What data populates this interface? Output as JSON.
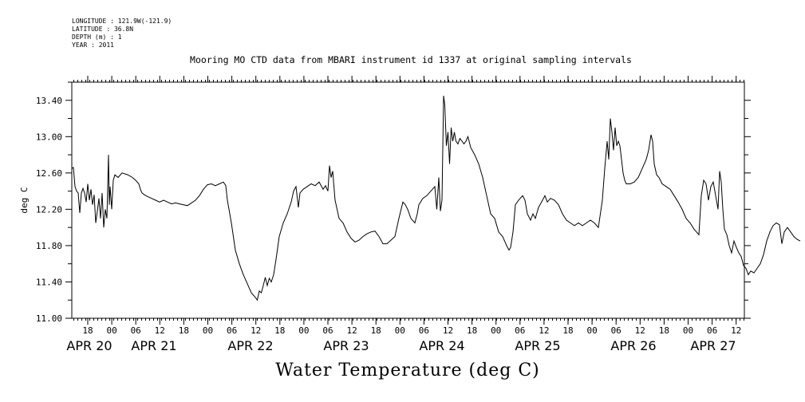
{
  "meta": {
    "longitude": "LONGITUDE : 121.9W(-121.9)",
    "latitude": "LATITUDE : 36.8N",
    "depth": "DEPTH (m) : 1",
    "year": "YEAR : 2011"
  },
  "chart_data": {
    "type": "line",
    "title": "Mooring MO CTD data from MBARI instrument id 1337 at original sampling intervals",
    "xlabel": "Water Temperature (deg C)",
    "ylabel": "deg C",
    "ylim": [
      11.0,
      13.6
    ],
    "xlim_hours": [
      0,
      174
    ],
    "y_ticks": [
      "11.00",
      "11.40",
      "11.80",
      "12.20",
      "12.60",
      "13.00",
      "13.40"
    ],
    "x_hour_ticks": [
      "18",
      "00",
      "06",
      "12",
      "18",
      "00",
      "06",
      "12",
      "18",
      "00",
      "06",
      "12",
      "18",
      "00",
      "06",
      "12",
      "18",
      "00",
      "06",
      "12",
      "18",
      "00",
      "06",
      "12",
      "18",
      "00",
      "06",
      "12",
      "18",
      "00",
      "06",
      "12",
      "18",
      "00",
      "06",
      "12",
      "18",
      "00",
      "06",
      "12"
    ],
    "date_labels": [
      "APR 20",
      "APR 21",
      "APR 22",
      "APR 23",
      "APR 24",
      "APR 25",
      "APR 26",
      "APR 27"
    ],
    "grid": false,
    "series": [
      {
        "values": [
          [
            0.0,
            12.65
          ],
          [
            0.4,
            12.66
          ],
          [
            0.8,
            12.45
          ],
          [
            1.2,
            12.4
          ],
          [
            1.6,
            12.38
          ],
          [
            2.0,
            12.16
          ],
          [
            2.4,
            12.38
          ],
          [
            2.8,
            12.43
          ],
          [
            3.2,
            12.38
          ],
          [
            3.6,
            12.28
          ],
          [
            4.0,
            12.48
          ],
          [
            4.4,
            12.3
          ],
          [
            4.8,
            12.42
          ],
          [
            5.2,
            12.25
          ],
          [
            5.6,
            12.36
          ],
          [
            6.0,
            12.05
          ],
          [
            6.4,
            12.18
          ],
          [
            6.8,
            12.32
          ],
          [
            7.2,
            12.1
          ],
          [
            7.6,
            12.38
          ],
          [
            8.0,
            12.0
          ],
          [
            8.4,
            12.2
          ],
          [
            8.8,
            12.1
          ],
          [
            9.2,
            12.8
          ],
          [
            9.4,
            12.25
          ],
          [
            9.6,
            12.45
          ],
          [
            10.0,
            12.2
          ],
          [
            10.4,
            12.52
          ],
          [
            10.8,
            12.58
          ],
          [
            11.6,
            12.55
          ],
          [
            12.6,
            12.6
          ],
          [
            14.0,
            12.58
          ],
          [
            15.2,
            12.55
          ],
          [
            16.0,
            12.52
          ],
          [
            16.8,
            12.48
          ],
          [
            17.2,
            12.42
          ],
          [
            17.6,
            12.38
          ],
          [
            18.2,
            12.36
          ],
          [
            19.0,
            12.34
          ],
          [
            20.0,
            12.32
          ],
          [
            21.0,
            12.3
          ],
          [
            22.0,
            12.28
          ],
          [
            23.0,
            12.3
          ],
          [
            24.0,
            12.28
          ],
          [
            25.0,
            12.26
          ],
          [
            26.0,
            12.27
          ],
          [
            27.0,
            12.26
          ],
          [
            28.0,
            12.25
          ],
          [
            29.0,
            12.24
          ],
          [
            30.0,
            12.27
          ],
          [
            31.0,
            12.3
          ],
          [
            32.0,
            12.35
          ],
          [
            33.0,
            12.42
          ],
          [
            34.0,
            12.47
          ],
          [
            35.0,
            12.48
          ],
          [
            36.0,
            12.46
          ],
          [
            37.0,
            12.48
          ],
          [
            38.0,
            12.5
          ],
          [
            38.6,
            12.46
          ],
          [
            39.0,
            12.3
          ],
          [
            40.0,
            12.05
          ],
          [
            41.0,
            11.75
          ],
          [
            42.0,
            11.6
          ],
          [
            43.0,
            11.48
          ],
          [
            44.0,
            11.38
          ],
          [
            45.0,
            11.28
          ],
          [
            46.0,
            11.23
          ],
          [
            46.5,
            11.2
          ],
          [
            47.0,
            11.3
          ],
          [
            47.5,
            11.28
          ],
          [
            48.0,
            11.36
          ],
          [
            48.5,
            11.45
          ],
          [
            49.0,
            11.36
          ],
          [
            49.5,
            11.44
          ],
          [
            50.0,
            11.4
          ],
          [
            50.6,
            11.48
          ],
          [
            51.2,
            11.65
          ],
          [
            52.0,
            11.9
          ],
          [
            53.0,
            12.05
          ],
          [
            54.0,
            12.15
          ],
          [
            55.0,
            12.28
          ],
          [
            55.6,
            12.4
          ],
          [
            56.2,
            12.45
          ],
          [
            56.8,
            12.22
          ],
          [
            57.2,
            12.38
          ],
          [
            58.0,
            12.42
          ],
          [
            59.0,
            12.45
          ],
          [
            60.0,
            12.48
          ],
          [
            61.0,
            12.46
          ],
          [
            62.0,
            12.5
          ],
          [
            63.0,
            12.42
          ],
          [
            63.6,
            12.46
          ],
          [
            64.2,
            12.4
          ],
          [
            64.6,
            12.68
          ],
          [
            65.0,
            12.55
          ],
          [
            65.4,
            12.62
          ],
          [
            66.0,
            12.3
          ],
          [
            67.0,
            12.1
          ],
          [
            68.0,
            12.05
          ],
          [
            69.0,
            11.95
          ],
          [
            70.0,
            11.88
          ],
          [
            71.0,
            11.84
          ],
          [
            72.0,
            11.86
          ],
          [
            73.0,
            11.9
          ],
          [
            74.0,
            11.93
          ],
          [
            75.0,
            11.95
          ],
          [
            76.0,
            11.96
          ],
          [
            77.0,
            11.9
          ],
          [
            78.0,
            11.82
          ],
          [
            79.0,
            11.82
          ],
          [
            80.0,
            11.86
          ],
          [
            81.0,
            11.9
          ],
          [
            82.0,
            12.1
          ],
          [
            83.0,
            12.28
          ],
          [
            83.6,
            12.25
          ],
          [
            84.2,
            12.2
          ],
          [
            85.0,
            12.1
          ],
          [
            86.0,
            12.05
          ],
          [
            86.6,
            12.15
          ],
          [
            87.0,
            12.25
          ],
          [
            88.0,
            12.32
          ],
          [
            89.0,
            12.35
          ],
          [
            90.0,
            12.4
          ],
          [
            91.0,
            12.45
          ],
          [
            91.5,
            12.2
          ],
          [
            92.0,
            12.55
          ],
          [
            92.4,
            12.18
          ],
          [
            92.8,
            12.3
          ],
          [
            93.2,
            13.45
          ],
          [
            93.5,
            13.35
          ],
          [
            93.9,
            12.9
          ],
          [
            94.3,
            13.05
          ],
          [
            94.7,
            12.7
          ],
          [
            95.1,
            13.1
          ],
          [
            95.5,
            12.95
          ],
          [
            95.9,
            13.05
          ],
          [
            96.3,
            12.95
          ],
          [
            96.8,
            12.92
          ],
          [
            97.3,
            12.98
          ],
          [
            97.8,
            12.95
          ],
          [
            98.3,
            12.92
          ],
          [
            98.8,
            12.95
          ],
          [
            99.3,
            13.0
          ],
          [
            100.0,
            12.88
          ],
          [
            101.0,
            12.8
          ],
          [
            102.0,
            12.7
          ],
          [
            103.0,
            12.55
          ],
          [
            104.0,
            12.35
          ],
          [
            105.0,
            12.15
          ],
          [
            106.0,
            12.1
          ],
          [
            107.0,
            11.95
          ],
          [
            108.0,
            11.9
          ],
          [
            109.0,
            11.8
          ],
          [
            109.6,
            11.75
          ],
          [
            110.0,
            11.78
          ],
          [
            110.6,
            11.95
          ],
          [
            111.2,
            12.25
          ],
          [
            112.0,
            12.3
          ],
          [
            113.0,
            12.35
          ],
          [
            113.6,
            12.3
          ],
          [
            114.2,
            12.15
          ],
          [
            115.0,
            12.08
          ],
          [
            115.6,
            12.15
          ],
          [
            116.2,
            12.1
          ],
          [
            117.0,
            12.22
          ],
          [
            118.0,
            12.3
          ],
          [
            118.6,
            12.35
          ],
          [
            119.2,
            12.28
          ],
          [
            120.0,
            12.32
          ],
          [
            121.0,
            12.3
          ],
          [
            122.0,
            12.25
          ],
          [
            123.0,
            12.15
          ],
          [
            124.0,
            12.08
          ],
          [
            125.0,
            12.05
          ],
          [
            126.0,
            12.02
          ],
          [
            127.0,
            12.05
          ],
          [
            128.0,
            12.02
          ],
          [
            129.0,
            12.05
          ],
          [
            130.0,
            12.08
          ],
          [
            131.0,
            12.05
          ],
          [
            132.0,
            12.0
          ],
          [
            133.0,
            12.3
          ],
          [
            133.6,
            12.65
          ],
          [
            134.2,
            12.95
          ],
          [
            134.6,
            12.75
          ],
          [
            135.0,
            13.2
          ],
          [
            135.4,
            13.05
          ],
          [
            135.8,
            12.85
          ],
          [
            136.2,
            13.1
          ],
          [
            136.6,
            12.9
          ],
          [
            137.0,
            12.95
          ],
          [
            137.4,
            12.9
          ],
          [
            137.8,
            12.75
          ],
          [
            138.2,
            12.6
          ],
          [
            138.6,
            12.52
          ],
          [
            139.0,
            12.48
          ],
          [
            140.0,
            12.48
          ],
          [
            141.0,
            12.5
          ],
          [
            142.0,
            12.55
          ],
          [
            143.0,
            12.65
          ],
          [
            144.0,
            12.75
          ],
          [
            144.6,
            12.85
          ],
          [
            145.2,
            13.02
          ],
          [
            145.6,
            12.95
          ],
          [
            146.0,
            12.7
          ],
          [
            146.6,
            12.58
          ],
          [
            147.2,
            12.55
          ],
          [
            148.0,
            12.48
          ],
          [
            149.0,
            12.45
          ],
          [
            150.0,
            12.42
          ],
          [
            151.0,
            12.35
          ],
          [
            152.0,
            12.28
          ],
          [
            153.0,
            12.2
          ],
          [
            154.0,
            12.1
          ],
          [
            155.0,
            12.05
          ],
          [
            156.0,
            11.98
          ],
          [
            156.6,
            11.95
          ],
          [
            157.2,
            11.92
          ],
          [
            157.8,
            12.35
          ],
          [
            158.4,
            12.52
          ],
          [
            159.0,
            12.48
          ],
          [
            159.6,
            12.3
          ],
          [
            160.2,
            12.45
          ],
          [
            160.8,
            12.5
          ],
          [
            161.4,
            12.35
          ],
          [
            162.0,
            12.2
          ],
          [
            162.4,
            12.62
          ],
          [
            162.8,
            12.5
          ],
          [
            163.2,
            12.2
          ],
          [
            163.6,
            11.98
          ],
          [
            164.2,
            11.92
          ],
          [
            164.8,
            11.8
          ],
          [
            165.4,
            11.72
          ],
          [
            166.0,
            11.85
          ],
          [
            166.6,
            11.78
          ],
          [
            167.2,
            11.72
          ],
          [
            167.8,
            11.68
          ],
          [
            168.4,
            11.58
          ],
          [
            169.0,
            11.55
          ],
          [
            169.6,
            11.48
          ],
          [
            170.2,
            11.52
          ],
          [
            171.0,
            11.5
          ],
          [
            171.8,
            11.55
          ],
          [
            172.6,
            11.6
          ],
          [
            173.4,
            11.7
          ],
          [
            174.2,
            11.85
          ],
          [
            175.0,
            11.95
          ],
          [
            175.8,
            12.02
          ],
          [
            176.6,
            12.05
          ],
          [
            177.4,
            12.03
          ],
          [
            178.0,
            11.82
          ],
          [
            178.6,
            11.95
          ],
          [
            179.4,
            12.0
          ],
          [
            180.2,
            11.95
          ],
          [
            181.0,
            11.9
          ],
          [
            181.8,
            11.87
          ],
          [
            182.6,
            11.85
          ]
        ]
      }
    ]
  }
}
